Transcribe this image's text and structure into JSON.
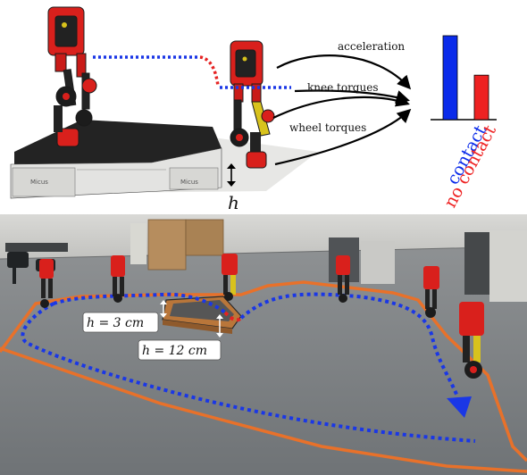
{
  "top_panel": {
    "labels": {
      "acceleration": "acceleration",
      "knee_torques": "knee torques",
      "wheel_torques": "wheel torques",
      "height_symbol": "h"
    },
    "platform_tags": [
      "Micus",
      "Micus"
    ],
    "bar_chart": {
      "contact_label": "contact",
      "no_contact_label": "no contact",
      "contact_color": "#0a2bea",
      "no_contact_color": "#ee2222",
      "contact_value": 1.0,
      "no_contact_value": 0.53
    }
  },
  "bottom_panel": {
    "label_low": "h = 3 cm",
    "label_high": "h = 12 cm",
    "track_color": "#e8712a",
    "path_color": "#1a37e6",
    "transition_color": "#e52222"
  },
  "colors": {
    "robot_red": "#d9201c",
    "robot_black": "#1c1c1c",
    "robot_yellow": "#d8c21c"
  }
}
